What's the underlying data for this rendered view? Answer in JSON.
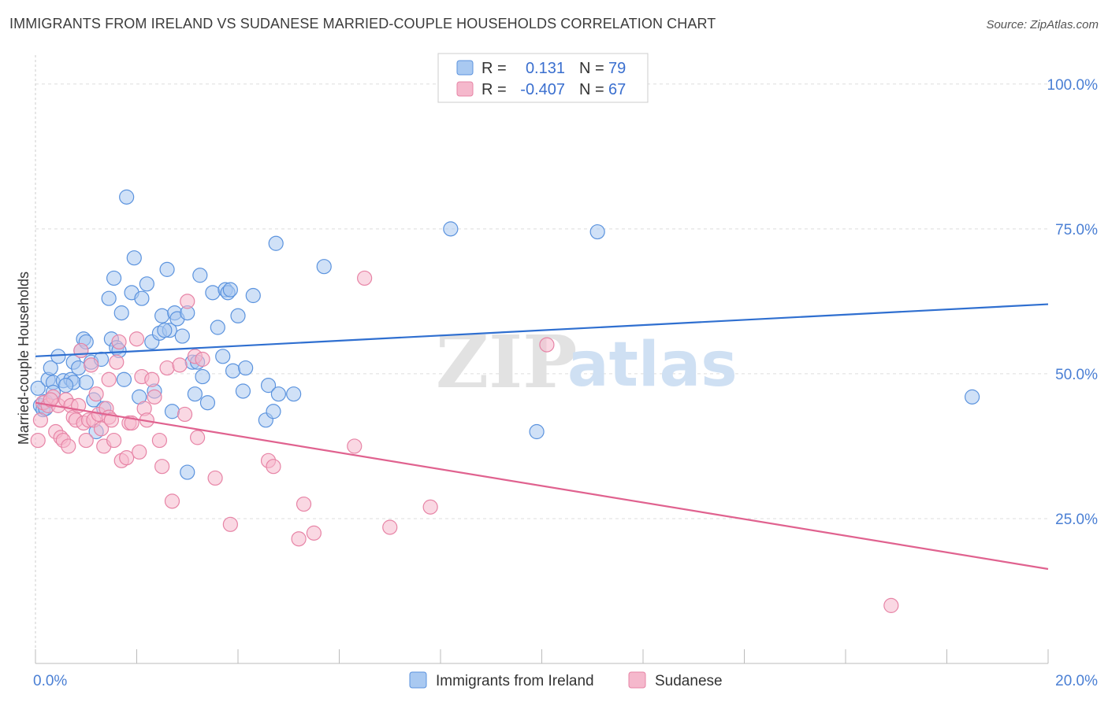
{
  "title": "IMMIGRANTS FROM IRELAND VS SUDANESE MARRIED-COUPLE HOUSEHOLDS CORRELATION CHART",
  "source": "Source: ZipAtlas.com",
  "watermark": {
    "zip": "ZIP",
    "atlas": "atlas"
  },
  "colors": {
    "blue_fill": "#a9c9f1",
    "blue_stroke": "#5b93de",
    "blue_line": "#2f6fd0",
    "pink_fill": "#f5b8cc",
    "pink_stroke": "#e784a6",
    "pink_line": "#e0628f",
    "grid": "#dddddd",
    "axis_label": "#4a7fd4"
  },
  "chart_data": {
    "type": "scatter",
    "xlabel": "",
    "ylabel": "Married-couple Households",
    "xlim": [
      0,
      20
    ],
    "ylim": [
      0,
      105
    ],
    "x_ticks": [
      {
        "v": 0,
        "label": "0.0%"
      },
      {
        "v": 20,
        "label": "20.0%"
      }
    ],
    "y_ticks": [
      {
        "v": 25,
        "label": "25.0%"
      },
      {
        "v": 50,
        "label": "50.0%"
      },
      {
        "v": 75,
        "label": "75.0%"
      },
      {
        "v": 100,
        "label": "100.0%"
      }
    ],
    "grid": true,
    "legend_position": "top-center",
    "legend": [
      {
        "r_label": "R =",
        "r_value": "0.131",
        "n_label": "N =",
        "n_value": "79"
      },
      {
        "r_label": "R =",
        "r_value": "-0.407",
        "n_label": "N =",
        "n_value": "67"
      }
    ],
    "series": [
      {
        "name": "Immigrants from Ireland",
        "trend": {
          "x": [
            0,
            20
          ],
          "y": [
            53.0,
            62.0
          ]
        },
        "points": [
          [
            0.05,
            47.5
          ],
          [
            0.1,
            44.5
          ],
          [
            0.15,
            43.8
          ],
          [
            0.2,
            45.2
          ],
          [
            0.25,
            49.0
          ],
          [
            0.3,
            51.0
          ],
          [
            0.35,
            48.5
          ],
          [
            0.35,
            46.8
          ],
          [
            0.45,
            53.0
          ],
          [
            0.55,
            48.8
          ],
          [
            0.7,
            49.0
          ],
          [
            0.75,
            52.0
          ],
          [
            0.75,
            48.5
          ],
          [
            0.85,
            51.0
          ],
          [
            0.9,
            54.0
          ],
          [
            0.95,
            56.0
          ],
          [
            1.0,
            55.5
          ],
          [
            1.1,
            52.0
          ],
          [
            1.15,
            45.5
          ],
          [
            1.2,
            40.0
          ],
          [
            1.3,
            52.5
          ],
          [
            1.35,
            44.0
          ],
          [
            1.45,
            63.0
          ],
          [
            1.5,
            56.0
          ],
          [
            1.55,
            66.5
          ],
          [
            1.6,
            54.5
          ],
          [
            1.65,
            54.0
          ],
          [
            1.7,
            60.5
          ],
          [
            1.75,
            49.0
          ],
          [
            1.8,
            80.5
          ],
          [
            1.9,
            64.0
          ],
          [
            1.95,
            70.0
          ],
          [
            2.05,
            46.0
          ],
          [
            2.1,
            63.0
          ],
          [
            2.2,
            65.5
          ],
          [
            2.3,
            55.5
          ],
          [
            2.35,
            47.0
          ],
          [
            2.45,
            57.0
          ],
          [
            2.5,
            60.0
          ],
          [
            2.6,
            68.0
          ],
          [
            2.65,
            57.5
          ],
          [
            2.7,
            43.5
          ],
          [
            2.75,
            60.5
          ],
          [
            2.8,
            59.5
          ],
          [
            2.9,
            56.5
          ],
          [
            3.0,
            60.5
          ],
          [
            3.0,
            33.0
          ],
          [
            3.1,
            52.0
          ],
          [
            3.15,
            46.5
          ],
          [
            3.2,
            52.0
          ],
          [
            3.25,
            67.0
          ],
          [
            3.3,
            49.5
          ],
          [
            3.4,
            45.0
          ],
          [
            3.5,
            64.0
          ],
          [
            3.6,
            58.0
          ],
          [
            3.7,
            53.0
          ],
          [
            3.75,
            64.5
          ],
          [
            3.8,
            64.0
          ],
          [
            3.9,
            50.5
          ],
          [
            4.0,
            60.0
          ],
          [
            4.1,
            47.0
          ],
          [
            4.15,
            51.0
          ],
          [
            4.3,
            63.5
          ],
          [
            4.55,
            42.0
          ],
          [
            4.6,
            48.0
          ],
          [
            4.7,
            43.5
          ],
          [
            4.75,
            72.5
          ],
          [
            4.8,
            46.5
          ],
          [
            5.1,
            46.5
          ],
          [
            5.7,
            68.5
          ],
          [
            8.2,
            75.0
          ],
          [
            9.9,
            40.0
          ],
          [
            11.1,
            74.5
          ],
          [
            18.5,
            46.0
          ],
          [
            0.2,
            44.0
          ],
          [
            1.0,
            48.5
          ],
          [
            2.55,
            57.5
          ],
          [
            3.85,
            64.5
          ],
          [
            0.6,
            48.0
          ]
        ]
      },
      {
        "name": "Sudanese",
        "trend": {
          "x": [
            0,
            20
          ],
          "y": [
            45.0,
            16.3
          ]
        },
        "points": [
          [
            0.05,
            38.5
          ],
          [
            0.1,
            42.0
          ],
          [
            0.15,
            45.0
          ],
          [
            0.25,
            44.5
          ],
          [
            0.35,
            46.0
          ],
          [
            0.4,
            40.0
          ],
          [
            0.45,
            44.5
          ],
          [
            0.5,
            39.0
          ],
          [
            0.55,
            38.5
          ],
          [
            0.6,
            45.5
          ],
          [
            0.65,
            37.5
          ],
          [
            0.7,
            44.5
          ],
          [
            0.75,
            42.5
          ],
          [
            0.8,
            42.0
          ],
          [
            0.85,
            44.5
          ],
          [
            0.9,
            54.0
          ],
          [
            0.95,
            41.5
          ],
          [
            1.0,
            38.5
          ],
          [
            1.05,
            42.0
          ],
          [
            1.1,
            51.5
          ],
          [
            1.15,
            42.0
          ],
          [
            1.2,
            46.5
          ],
          [
            1.25,
            43.0
          ],
          [
            1.3,
            40.5
          ],
          [
            1.35,
            37.5
          ],
          [
            1.4,
            44.0
          ],
          [
            1.45,
            42.5
          ],
          [
            1.5,
            42.0
          ],
          [
            1.55,
            38.5
          ],
          [
            1.6,
            52.0
          ],
          [
            1.65,
            55.5
          ],
          [
            1.7,
            35.0
          ],
          [
            1.8,
            35.5
          ],
          [
            1.85,
            41.5
          ],
          [
            1.9,
            41.5
          ],
          [
            2.0,
            56.0
          ],
          [
            2.05,
            36.5
          ],
          [
            2.1,
            49.5
          ],
          [
            2.15,
            44.0
          ],
          [
            2.2,
            42.0
          ],
          [
            2.3,
            49.0
          ],
          [
            2.35,
            46.0
          ],
          [
            2.45,
            38.5
          ],
          [
            2.5,
            34.0
          ],
          [
            2.6,
            51.0
          ],
          [
            2.7,
            28.0
          ],
          [
            2.85,
            51.5
          ],
          [
            2.95,
            43.0
          ],
          [
            3.0,
            62.5
          ],
          [
            3.15,
            53.0
          ],
          [
            3.2,
            39.0
          ],
          [
            3.3,
            52.5
          ],
          [
            3.55,
            32.0
          ],
          [
            3.85,
            24.0
          ],
          [
            4.6,
            35.0
          ],
          [
            4.7,
            34.0
          ],
          [
            5.2,
            21.5
          ],
          [
            5.3,
            27.5
          ],
          [
            5.5,
            22.5
          ],
          [
            6.3,
            37.5
          ],
          [
            6.5,
            66.5
          ],
          [
            7.0,
            23.5
          ],
          [
            7.8,
            27.0
          ],
          [
            10.1,
            55.0
          ],
          [
            16.9,
            10.0
          ],
          [
            0.3,
            45.5
          ],
          [
            1.45,
            49.0
          ]
        ]
      }
    ]
  }
}
